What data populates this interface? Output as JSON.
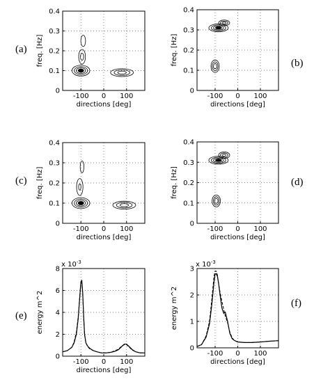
{
  "figure": {
    "panels": [
      {
        "id": "a",
        "label": "(a)"
      },
      {
        "id": "b",
        "label": "(b)"
      },
      {
        "id": "c",
        "label": "(c)"
      },
      {
        "id": "d",
        "label": "(d)"
      },
      {
        "id": "e",
        "label": "(e)"
      },
      {
        "id": "f",
        "label": "(f)"
      }
    ]
  },
  "chart_data": [
    {
      "id": "a",
      "type": "contour",
      "xlabel": "directions [deg]",
      "ylabel": "freq. [Hz]",
      "xlim": [
        -180,
        180
      ],
      "ylim": [
        0,
        0.4
      ],
      "xticks": [
        -100,
        0,
        100
      ],
      "yticks": [
        0,
        0.1,
        0.2,
        0.3,
        0.4
      ],
      "grid": true,
      "peaks": [
        {
          "direction": -100,
          "frequency": 0.1,
          "level": 1.0,
          "sdir": 20,
          "sfreq": 0.014
        },
        {
          "direction": -95,
          "frequency": 0.17,
          "level": 0.45,
          "sdir": 10,
          "sfreq": 0.025
        },
        {
          "direction": -90,
          "frequency": 0.25,
          "level": 0.35,
          "sdir": 8,
          "sfreq": 0.022
        },
        {
          "direction": 80,
          "frequency": 0.09,
          "level": 0.75,
          "sdir": 28,
          "sfreq": 0.011
        }
      ]
    },
    {
      "id": "b",
      "type": "contour",
      "xlabel": "directions [deg]",
      "ylabel": "freq. [Hz]",
      "xlim": [
        -180,
        180
      ],
      "ylim": [
        0,
        0.4
      ],
      "xticks": [
        -100,
        0,
        100
      ],
      "yticks": [
        0,
        0.1,
        0.2,
        0.3,
        0.4
      ],
      "grid": true,
      "peaks": [
        {
          "direction": -85,
          "frequency": 0.31,
          "level": 1.0,
          "sdir": 22,
          "sfreq": 0.01
        },
        {
          "direction": -60,
          "frequency": 0.335,
          "level": 0.7,
          "sdir": 14,
          "sfreq": 0.008
        },
        {
          "direction": -100,
          "frequency": 0.12,
          "level": 0.8,
          "sdir": 10,
          "sfreq": 0.017
        }
      ]
    },
    {
      "id": "c",
      "type": "contour",
      "xlabel": "directions [deg]",
      "ylabel": "freq. [Hz]",
      "xlim": [
        -180,
        180
      ],
      "ylim": [
        0,
        0.4
      ],
      "xticks": [
        -100,
        0,
        100
      ],
      "yticks": [
        0,
        0.1,
        0.2,
        0.3,
        0.4
      ],
      "grid": true,
      "peaks": [
        {
          "direction": -100,
          "frequency": 0.1,
          "level": 1.0,
          "sdir": 20,
          "sfreq": 0.014
        },
        {
          "direction": -105,
          "frequency": 0.18,
          "level": 0.4,
          "sdir": 10,
          "sfreq": 0.03
        },
        {
          "direction": -95,
          "frequency": 0.28,
          "level": 0.3,
          "sdir": 7,
          "sfreq": 0.025
        },
        {
          "direction": 90,
          "frequency": 0.09,
          "level": 0.75,
          "sdir": 28,
          "sfreq": 0.011
        }
      ]
    },
    {
      "id": "d",
      "type": "contour",
      "xlabel": "directions [deg]",
      "ylabel": "freq. [Hz]",
      "xlim": [
        -180,
        180
      ],
      "ylim": [
        0,
        0.4
      ],
      "xticks": [
        -100,
        0,
        100
      ],
      "yticks": [
        0,
        0.1,
        0.2,
        0.3,
        0.4
      ],
      "grid": true,
      "peaks": [
        {
          "direction": -85,
          "frequency": 0.31,
          "level": 1.0,
          "sdir": 22,
          "sfreq": 0.01
        },
        {
          "direction": -60,
          "frequency": 0.335,
          "level": 0.7,
          "sdir": 14,
          "sfreq": 0.009
        },
        {
          "direction": -95,
          "frequency": 0.11,
          "level": 0.8,
          "sdir": 10,
          "sfreq": 0.016
        }
      ]
    },
    {
      "id": "e",
      "type": "line",
      "xlabel": "directions [deg]",
      "ylabel": "energy m^2",
      "scale_label": "x 10^-3",
      "xlim": [
        -180,
        180
      ],
      "ylim": [
        0,
        8
      ],
      "xticks": [
        -100,
        0,
        100
      ],
      "yticks": [
        0,
        2,
        4,
        6,
        8
      ],
      "grid": true,
      "series": [
        {
          "style": "solid",
          "x": [
            -180,
            -160,
            -140,
            -130,
            -120,
            -112,
            -105,
            -100,
            -96,
            -92,
            -88,
            -84,
            -78,
            -70,
            -60,
            -45,
            -30,
            -10,
            10,
            30,
            50,
            65,
            80,
            90,
            100,
            110,
            125,
            140,
            160,
            180
          ],
          "y": [
            0.4,
            0.5,
            0.8,
            1.2,
            2.0,
            3.4,
            5.4,
            6.8,
            6.9,
            5.8,
            3.6,
            2.0,
            1.2,
            0.9,
            0.7,
            0.5,
            0.4,
            0.3,
            0.3,
            0.35,
            0.45,
            0.6,
            0.9,
            1.1,
            1.1,
            0.9,
            0.6,
            0.4,
            0.3,
            0.3
          ]
        },
        {
          "style": "dashed",
          "x": [
            -180,
            -160,
            -140,
            -130,
            -120,
            -112,
            -105,
            -100,
            -96,
            -92,
            -88,
            -84,
            -78,
            -70,
            -60,
            -45,
            -30,
            -10,
            10,
            30,
            50,
            65,
            80,
            90,
            100,
            110,
            125,
            140,
            160,
            180
          ],
          "y": [
            0.4,
            0.5,
            0.8,
            1.3,
            2.2,
            3.6,
            5.5,
            6.7,
            6.7,
            5.6,
            3.4,
            1.9,
            1.2,
            0.85,
            0.65,
            0.5,
            0.4,
            0.3,
            0.3,
            0.35,
            0.5,
            0.65,
            0.95,
            1.05,
            1.05,
            0.85,
            0.55,
            0.4,
            0.3,
            0.3
          ]
        }
      ]
    },
    {
      "id": "f",
      "type": "line",
      "xlabel": "directions [deg]",
      "ylabel": "energy m^2",
      "scale_label": "x 10^-3",
      "xlim": [
        -180,
        180
      ],
      "ylim": [
        0,
        3
      ],
      "xticks": [
        -100,
        0,
        100
      ],
      "yticks": [
        0,
        1,
        2,
        3
      ],
      "grid": true,
      "series": [
        {
          "style": "solid",
          "x": [
            -180,
            -160,
            -140,
            -125,
            -115,
            -105,
            -100,
            -95,
            -90,
            -85,
            -78,
            -70,
            -62,
            -55,
            -45,
            -35,
            -25,
            -15,
            0,
            30,
            60,
            100,
            140,
            180
          ],
          "y": [
            0.05,
            0.12,
            0.4,
            0.9,
            1.6,
            2.5,
            2.8,
            2.8,
            2.7,
            2.45,
            2.0,
            1.5,
            1.3,
            1.35,
            1.0,
            0.55,
            0.35,
            0.28,
            0.22,
            0.2,
            0.2,
            0.22,
            0.25,
            0.27
          ]
        },
        {
          "style": "dashed",
          "x": [
            -180,
            -160,
            -140,
            -125,
            -115,
            -105,
            -100,
            -95,
            -90,
            -85,
            -78,
            -70,
            -62,
            -55,
            -45,
            -35,
            -25,
            -15,
            0,
            30,
            60,
            100,
            140,
            180
          ],
          "y": [
            0.05,
            0.12,
            0.45,
            1.0,
            1.8,
            2.7,
            2.9,
            2.9,
            2.75,
            2.45,
            2.1,
            1.75,
            1.45,
            1.2,
            0.95,
            0.6,
            0.38,
            0.28,
            0.22,
            0.2,
            0.2,
            0.22,
            0.25,
            0.27
          ]
        }
      ]
    }
  ]
}
